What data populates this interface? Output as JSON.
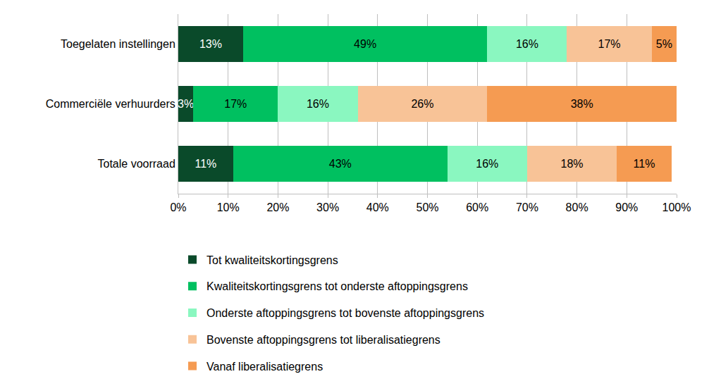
{
  "chart_data": {
    "type": "bar",
    "orientation": "horizontal",
    "stacked": true,
    "data_labels": true,
    "grid": true,
    "legend": "bottom left",
    "categories": [
      "Toegelaten instellingen",
      "Commerciële verhuurders",
      "Totale voorraad"
    ],
    "xlim": [
      0,
      100
    ],
    "xticks": [
      {
        "value": 0,
        "label": "0%"
      },
      {
        "value": 10,
        "label": "10%"
      },
      {
        "value": 20,
        "label": "20%"
      },
      {
        "value": 30,
        "label": "30%"
      },
      {
        "value": 40,
        "label": "40%"
      },
      {
        "value": 50,
        "label": "50%"
      },
      {
        "value": 60,
        "label": "60%"
      },
      {
        "value": 70,
        "label": "70%"
      },
      {
        "value": 80,
        "label": "80%"
      },
      {
        "value": 90,
        "label": "90%"
      },
      {
        "value": 100,
        "label": "100%"
      }
    ],
    "series": [
      {
        "name": "Tot kwaliteitskortingsgrens",
        "color": "#0a4a2a",
        "values": [
          13,
          3,
          11
        ],
        "value_labels": [
          "13%",
          "3%",
          "11%"
        ]
      },
      {
        "name": "Kwaliteitskortingsgrens tot onderste aftoppingsgrens",
        "color": "#00c060",
        "values": [
          49,
          17,
          43
        ],
        "value_labels": [
          "49%",
          "17%",
          "43%"
        ]
      },
      {
        "name": "Onderste aftoppingsgrens tot bovenste aftoppingsgrens",
        "color": "#8af7c0",
        "values": [
          16,
          16,
          16
        ],
        "value_labels": [
          "16%",
          "16%",
          "16%"
        ]
      },
      {
        "name": "Bovenste aftoppingsgrens tot liberalisatiegrens",
        "color": "#f8c397",
        "values": [
          17,
          26,
          18
        ],
        "value_labels": [
          "17%",
          "26%",
          "18%"
        ]
      },
      {
        "name": "Vanaf liberalisatiegrens",
        "color": "#f59b52",
        "values": [
          5,
          38,
          11
        ],
        "value_labels": [
          "5%",
          "38%",
          "11%"
        ]
      }
    ]
  }
}
